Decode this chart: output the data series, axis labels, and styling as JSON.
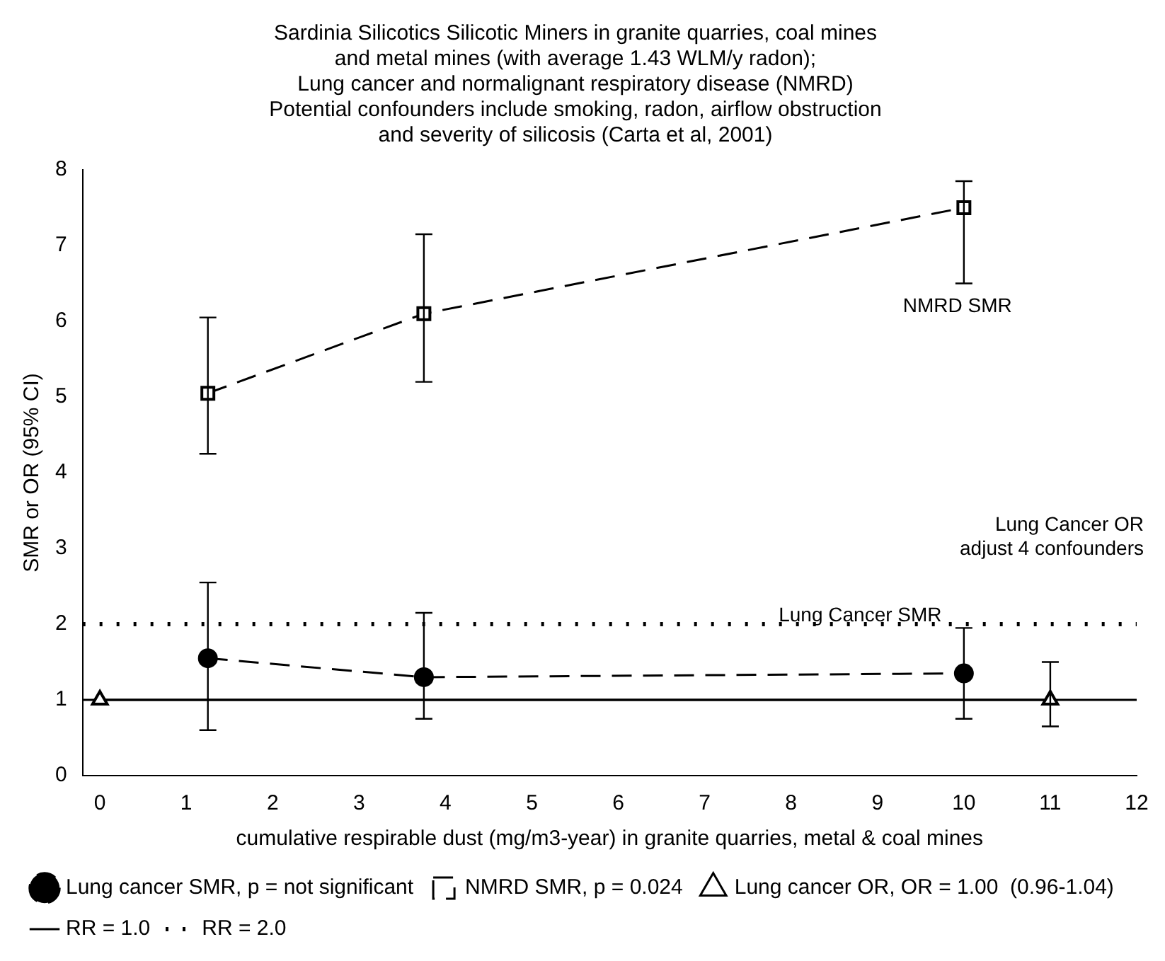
{
  "chart_data": {
    "type": "line",
    "title": "Sardinia Silicotics Silicotic Miners in granite quarries, coal mines\nand metal mines (with average 1.43 WLM/y radon);\nLung cancer and normalignant respiratory disease (NMRD)\nPotential confounders include smoking, radon, airflow obstruction\nand severity of silicosis (Carta et al, 2001)",
    "xlabel": "cumulative respirable dust (mg/m3-year) in granite quarries, metal & coal mines",
    "ylabel": "SMR or OR (95% CI)",
    "xlim": [
      -0.2,
      12
    ],
    "xticks": [
      0,
      1,
      2,
      3,
      4,
      5,
      6,
      7,
      8,
      9,
      10,
      11,
      12
    ],
    "ylim": [
      0,
      8
    ],
    "yticks": [
      0,
      1,
      2,
      3,
      4,
      5,
      6,
      7,
      8
    ],
    "series": [
      {
        "name": "Lung cancer SMR, p = not significant",
        "color": "#000000",
        "marker": "circle",
        "line_style": "dashed",
        "x": [
          1.25,
          3.75,
          10
        ],
        "values": [
          1.55,
          1.3,
          1.35
        ],
        "errors": [
          [
            0.6,
            2.55
          ],
          [
            0.75,
            2.15
          ],
          [
            0.75,
            1.95
          ]
        ]
      },
      {
        "name": "NMRD SMR, p = 0.024",
        "color": "#000000",
        "marker": "square",
        "line_style": "dashed",
        "x": [
          1.25,
          3.75,
          10
        ],
        "values": [
          5.05,
          6.1,
          7.5
        ],
        "errors": [
          [
            4.25,
            6.05
          ],
          [
            5.2,
            7.15
          ],
          [
            6.5,
            7.85
          ]
        ]
      },
      {
        "name": "Lung cancer OR, OR = 1.00  (0.96-1.04)",
        "color": "#000000",
        "marker": "triangle",
        "line_style": "solid",
        "x": [
          0,
          11
        ],
        "values": [
          1,
          1
        ],
        "errors": [
          null,
          [
            0.65,
            1.5
          ]
        ]
      },
      {
        "name": "RR = 1.0",
        "color": "#000000",
        "marker": "none",
        "line_style": "solid",
        "x": [
          -0.2,
          12
        ],
        "values": [
          1,
          1
        ]
      },
      {
        "name": "RR = 2.0",
        "color": "#000000",
        "marker": "none",
        "line_style": "dotted",
        "x": [
          -0.2,
          12
        ],
        "values": [
          2,
          2
        ]
      }
    ],
    "annotations": [
      "NMRD SMR",
      "Lung Cancer OR\nadjust 4 confounders",
      {
        "text": "Lung Cancer SMR",
        "x": 8.8,
        "y": 2
      }
    ],
    "legend": "bottom",
    "grid": false
  }
}
